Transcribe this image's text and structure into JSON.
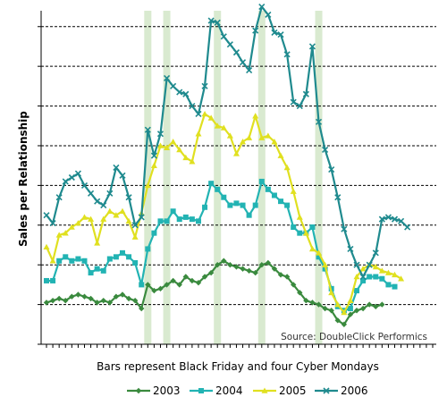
{
  "chart_data": {
    "type": "line",
    "ylabel": "Sales per Relationship",
    "xlabel": "",
    "note": "Bars represent Black Friday and four Cyber Mondays",
    "source": "Source: DoubleClick Performics",
    "ylim": [
      0,
      8.4
    ],
    "y_gridlines": [
      1,
      2,
      3,
      4,
      5,
      6,
      7,
      8
    ],
    "y_gridline_style": "dashed",
    "x_count": 62,
    "highlight_bands": [
      16,
      19,
      27,
      34,
      43
    ],
    "highlight_color": "#d9ead0",
    "legend_position": "bottom",
    "series": [
      {
        "name": "2003",
        "color": "#3a8a3e",
        "marker": "diamond",
        "values": [
          1.05,
          1.1,
          1.15,
          1.1,
          1.2,
          1.25,
          1.2,
          1.15,
          1.05,
          1.1,
          1.05,
          1.2,
          1.25,
          1.15,
          1.1,
          0.9,
          1.5,
          1.35,
          1.4,
          1.5,
          1.6,
          1.5,
          1.7,
          1.6,
          1.55,
          1.7,
          1.8,
          2.0,
          2.1,
          2.0,
          1.95,
          1.9,
          1.85,
          1.8,
          2.0,
          2.05,
          1.9,
          1.75,
          1.7,
          1.5,
          1.3,
          1.1,
          1.05,
          1.0,
          0.9,
          0.85,
          0.6,
          0.5,
          0.75,
          0.85,
          0.9,
          1.0,
          0.95,
          1.0
        ]
      },
      {
        "name": "2004",
        "color": "#22b3b3",
        "marker": "square",
        "values": [
          1.6,
          1.6,
          2.1,
          2.2,
          2.1,
          2.15,
          2.1,
          1.8,
          1.9,
          1.85,
          2.15,
          2.2,
          2.3,
          2.2,
          2.05,
          1.5,
          2.4,
          2.8,
          3.1,
          3.1,
          3.35,
          3.15,
          3.2,
          3.15,
          3.1,
          3.45,
          4.05,
          3.9,
          3.7,
          3.5,
          3.55,
          3.5,
          3.25,
          3.5,
          4.1,
          3.9,
          3.75,
          3.6,
          3.5,
          2.95,
          2.8,
          2.8,
          2.95,
          2.2,
          1.9,
          1.4,
          0.95,
          0.85,
          0.9,
          1.35,
          1.6,
          1.7,
          1.7,
          1.65,
          1.5,
          1.45
        ]
      },
      {
        "name": "2005",
        "color": "#e0e020",
        "marker": "triangle",
        "values": [
          2.45,
          2.1,
          2.75,
          2.8,
          2.95,
          3.05,
          3.2,
          3.15,
          2.55,
          3.15,
          3.35,
          3.25,
          3.35,
          3.1,
          2.7,
          3.3,
          4.0,
          4.5,
          5.0,
          4.95,
          5.1,
          4.9,
          4.7,
          4.6,
          5.3,
          5.8,
          5.7,
          5.5,
          5.45,
          5.25,
          4.8,
          5.1,
          5.2,
          5.75,
          5.2,
          5.25,
          5.1,
          4.75,
          4.45,
          3.85,
          3.2,
          2.8,
          2.4,
          2.3,
          2.0,
          1.3,
          1.0,
          0.8,
          1.1,
          1.7,
          1.9,
          2.0,
          1.95,
          1.85,
          1.8,
          1.75,
          1.65
        ]
      },
      {
        "name": "2006",
        "color": "#1f8a8e",
        "marker": "x",
        "values": [
          3.25,
          3.05,
          3.7,
          4.1,
          4.2,
          4.3,
          4.0,
          3.8,
          3.6,
          3.5,
          3.8,
          4.45,
          4.25,
          3.7,
          3.0,
          3.2,
          5.4,
          4.75,
          5.3,
          6.7,
          6.5,
          6.35,
          6.3,
          6.0,
          5.8,
          6.5,
          8.15,
          8.1,
          7.75,
          7.55,
          7.35,
          7.1,
          6.9,
          7.9,
          8.5,
          8.3,
          7.85,
          7.8,
          7.3,
          6.1,
          6.0,
          6.3,
          7.5,
          5.6,
          4.9,
          4.4,
          3.7,
          2.9,
          2.4,
          2.0,
          1.7,
          2.0,
          2.3,
          3.15,
          3.2,
          3.15,
          3.1,
          2.95
        ]
      }
    ]
  }
}
